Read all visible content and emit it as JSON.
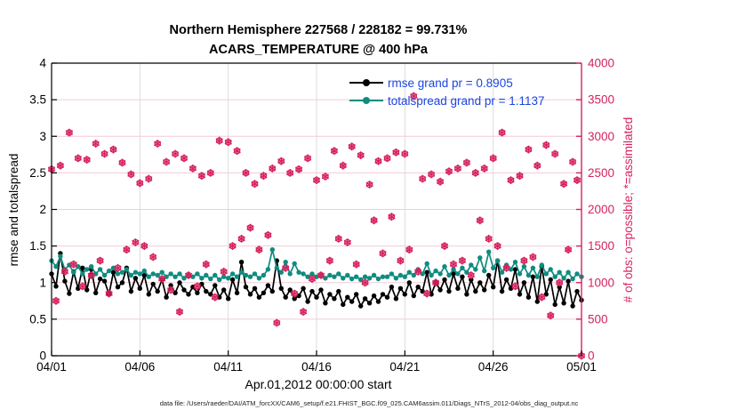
{
  "title": {
    "line1": "Northern Hemisphere 227568 / 228182 = 99.731%",
    "line2": "ACARS_TEMPERATURE @ 400 hPa"
  },
  "legend": {
    "rmse_label": "rmse grand pr = 0.8905",
    "totalspread_label": "totalspread grand pr = 1.1137"
  },
  "footer": {
    "data_file": "data file: /Users/raeder/DAI/ATM_forcXX/CAM6_setup/f.e21.FHIST_BGC.f09_025.CAM6assim.011/Diags_NTrS_2012-04/obs_diag_output.nc"
  },
  "colors": {
    "rmse": "#000000",
    "totalspread": "#0e8c80",
    "obs": "#d6225c",
    "legend_text": "#1b46e0",
    "right_axis": "#d6225c",
    "left_axis": "#000000",
    "grid_horizontal": "#f3ccd8",
    "grid_vertical": "#d9d9d9"
  },
  "chart_data": {
    "type": "line",
    "title": "Northern Hemisphere 227568 / 228182 = 99.731%",
    "subtitle": "ACARS_TEMPERATURE @ 400 hPa",
    "obs_possible": 228182,
    "obs_assimilated": 227568,
    "percent_assimilated": 99.731,
    "grid": true,
    "legend_position": "top-center-inside",
    "x_axis": {
      "label": "Apr.01,2012 00:00:00 start",
      "start_day": 0,
      "step_days": 0.25,
      "count": 121,
      "lim": [
        0,
        30
      ],
      "ticks": [
        0,
        5,
        10,
        15,
        20,
        25,
        30
      ],
      "tick_labels": [
        "04/01",
        "04/06",
        "04/11",
        "04/16",
        "04/21",
        "04/26",
        "05/01"
      ]
    },
    "y_left": {
      "label": "rmse and totalspread",
      "lim": [
        0,
        4
      ],
      "ticks": [
        0,
        0.5,
        1,
        1.5,
        2,
        2.5,
        3,
        3.5,
        4
      ],
      "tick_labels": [
        "0",
        "0.5",
        "1",
        "1.5",
        "2",
        "2.5",
        "3",
        "3.5",
        "4"
      ]
    },
    "y_right": {
      "label": "# of obs: o=possible; *=assimilated",
      "lim": [
        0,
        4000
      ],
      "ticks": [
        0,
        500,
        1000,
        1500,
        2000,
        2500,
        3000,
        3500,
        4000
      ],
      "tick_labels": [
        "0",
        "500",
        "1000",
        "1500",
        "2000",
        "2500",
        "3000",
        "3500",
        "4000"
      ]
    },
    "series": [
      {
        "name": "rmse",
        "axis": "left",
        "style": "line-dot",
        "color": "#000000",
        "grand_prior": 0.8905,
        "values": [
          1.12,
          0.95,
          1.4,
          1.02,
          0.85,
          1.15,
          0.92,
          1.2,
          0.9,
          1.18,
          0.86,
          1.05,
          1.02,
          0.84,
          1.14,
          0.94,
          1.0,
          1.2,
          0.88,
          1.06,
          0.92,
          1.1,
          0.84,
          0.98,
          0.88,
          1.04,
          0.8,
          0.96,
          0.86,
          1.0,
          0.9,
          0.84,
          0.94,
          0.86,
          0.98,
          0.88,
          0.84,
          0.96,
          0.8,
          0.9,
          0.78,
          1.04,
          0.86,
          1.28,
          0.94,
          0.84,
          0.92,
          0.8,
          0.86,
          0.96,
          0.88,
          1.3,
          0.92,
          0.8,
          0.9,
          0.78,
          0.82,
          0.92,
          0.74,
          0.88,
          0.8,
          0.9,
          0.72,
          0.84,
          0.78,
          0.88,
          0.7,
          0.8,
          0.74,
          0.84,
          0.68,
          0.78,
          0.72,
          0.82,
          0.74,
          0.84,
          0.8,
          0.94,
          0.78,
          0.92,
          0.84,
          1.0,
          0.82,
          0.94,
          0.88,
          1.14,
          0.84,
          1.0,
          0.9,
          1.04,
          0.88,
          1.12,
          0.92,
          1.08,
          0.84,
          1.04,
          0.88,
          1.0,
          0.9,
          1.1,
          0.94,
          1.3,
          0.88,
          1.04,
          0.92,
          1.18,
          0.84,
          1.0,
          0.8,
          1.08,
          0.74,
          1.22,
          0.84,
          1.04,
          0.7,
          0.94,
          0.72,
          1.02,
          0.68,
          0.88,
          0.76
        ]
      },
      {
        "name": "totalspread",
        "axis": "left",
        "style": "line-dot",
        "color": "#0e8c80",
        "grand_prior": 1.1137,
        "values": [
          1.3,
          1.22,
          1.36,
          1.18,
          1.24,
          1.14,
          1.22,
          1.12,
          1.18,
          1.22,
          1.12,
          1.18,
          1.1,
          1.16,
          1.2,
          1.12,
          1.14,
          1.18,
          1.1,
          1.14,
          1.12,
          1.16,
          1.08,
          1.12,
          1.1,
          1.14,
          1.08,
          1.12,
          1.08,
          1.12,
          1.06,
          1.1,
          1.08,
          1.12,
          1.06,
          1.1,
          1.05,
          1.1,
          1.04,
          1.08,
          1.06,
          1.12,
          1.08,
          1.14,
          1.1,
          1.08,
          1.12,
          1.06,
          1.1,
          1.18,
          1.45,
          1.2,
          1.14,
          1.28,
          1.12,
          1.26,
          1.14,
          1.12,
          1.08,
          1.12,
          1.08,
          1.1,
          1.06,
          1.1,
          1.08,
          1.12,
          1.06,
          1.1,
          1.05,
          1.08,
          1.04,
          1.08,
          1.06,
          1.1,
          1.05,
          1.08,
          1.08,
          1.12,
          1.06,
          1.1,
          1.08,
          1.14,
          1.1,
          1.18,
          1.12,
          1.26,
          1.1,
          1.16,
          1.12,
          1.22,
          1.1,
          1.18,
          1.12,
          1.2,
          1.14,
          1.24,
          1.18,
          1.34,
          1.16,
          1.42,
          1.2,
          1.3,
          1.14,
          1.24,
          1.18,
          1.28,
          1.12,
          1.22,
          1.1,
          1.2,
          1.08,
          1.24,
          1.12,
          1.18,
          1.08,
          1.14,
          1.06,
          1.14,
          1.05,
          1.12,
          1.08
        ]
      },
      {
        "name": "obs_count",
        "axis": "right",
        "style": "marker-circle-asterisk",
        "color": "#d6225c",
        "note": "o=possible and *=assimilated overlap (99.731% assimilated)",
        "values": [
          2550,
          750,
          2600,
          1150,
          3050,
          1250,
          2700,
          950,
          2680,
          1100,
          2900,
          1300,
          2760,
          850,
          2820,
          1200,
          2640,
          1450,
          2480,
          1550,
          2360,
          1500,
          2420,
          1350,
          2900,
          1050,
          2650,
          900,
          2760,
          600,
          2700,
          1100,
          2560,
          950,
          2460,
          1250,
          2500,
          800,
          2940,
          1150,
          2920,
          1500,
          2800,
          1600,
          2500,
          1750,
          2350,
          1450,
          2460,
          1650,
          2560,
          450,
          2660,
          1200,
          2500,
          850,
          2550,
          600,
          2700,
          1050,
          2400,
          1100,
          2450,
          1300,
          2800,
          1600,
          2600,
          1550,
          2860,
          1250,
          2740,
          1000,
          2340,
          1850,
          2660,
          1400,
          2700,
          1900,
          2780,
          1300,
          2760,
          1450,
          3550,
          1150,
          2420,
          850,
          2480,
          1000,
          2380,
          1500,
          2520,
          1250,
          2560,
          1300,
          2640,
          1100,
          2500,
          1850,
          2560,
          1600,
          2700,
          1500,
          3050,
          1200,
          2400,
          950,
          2460,
          1300,
          2820,
          1350,
          2600,
          800,
          2880,
          550,
          2760,
          1000,
          2350,
          1450,
          2650,
          2400,
          0
        ]
      }
    ]
  }
}
